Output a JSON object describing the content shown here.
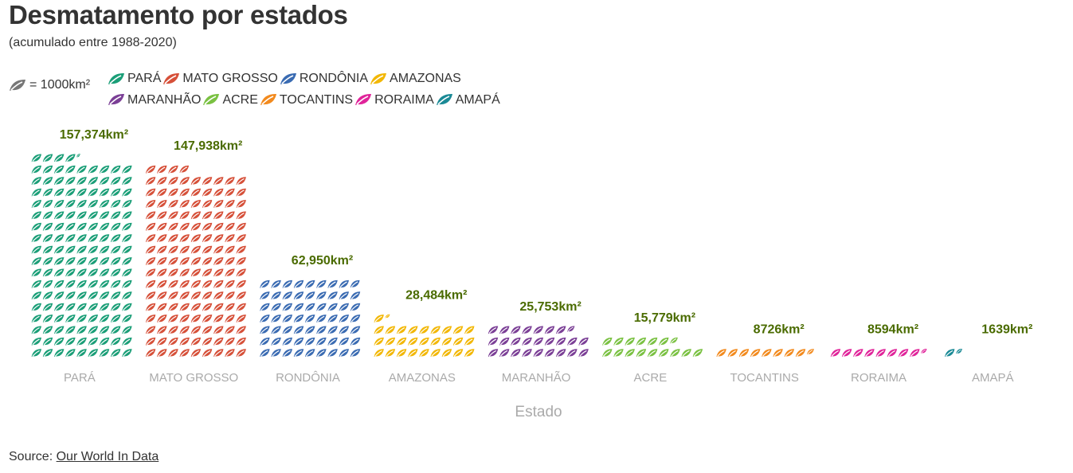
{
  "title": "Desmatamento por estados",
  "subtitle": "(acumulado entre 1988-2020)",
  "unit_label": "= 1000km²",
  "source_prefix": "Source: ",
  "source_link": "Our World In Data",
  "icon": "leaf-icon",
  "chart_data": {
    "type": "bar",
    "title": "Desmatamento por estados",
    "subtitle": "(acumulado entre 1988-2020)",
    "xlabel": "Estado",
    "ylabel": "",
    "unit": "1 icon = 1000km²",
    "legend_position": "top-left",
    "categories": [
      "PARÁ",
      "MATO GROSSO",
      "RONDÔNIA",
      "AMAZONAS",
      "MARANHÃO",
      "ACRE",
      "TOCANTINS",
      "RORAIMA",
      "AMAPÁ"
    ],
    "values": [
      157374,
      147938,
      62950,
      28484,
      25753,
      15779,
      8726,
      8594,
      1639
    ],
    "value_labels": [
      "157,374km²",
      "147,938km²",
      "62,950km²",
      "28,484km²",
      "25,753km²",
      "15,779km²",
      "8726km²",
      "8594km²",
      "1639km²"
    ],
    "colors": [
      "#1a9e77",
      "#d65039",
      "#3a6bb2",
      "#f2b705",
      "#7b3f96",
      "#7ac142",
      "#f28a1e",
      "#e0249a",
      "#1b8a96"
    ],
    "value_label_color": "#4a6b00",
    "axis_label_color": "#aaaaaa"
  }
}
